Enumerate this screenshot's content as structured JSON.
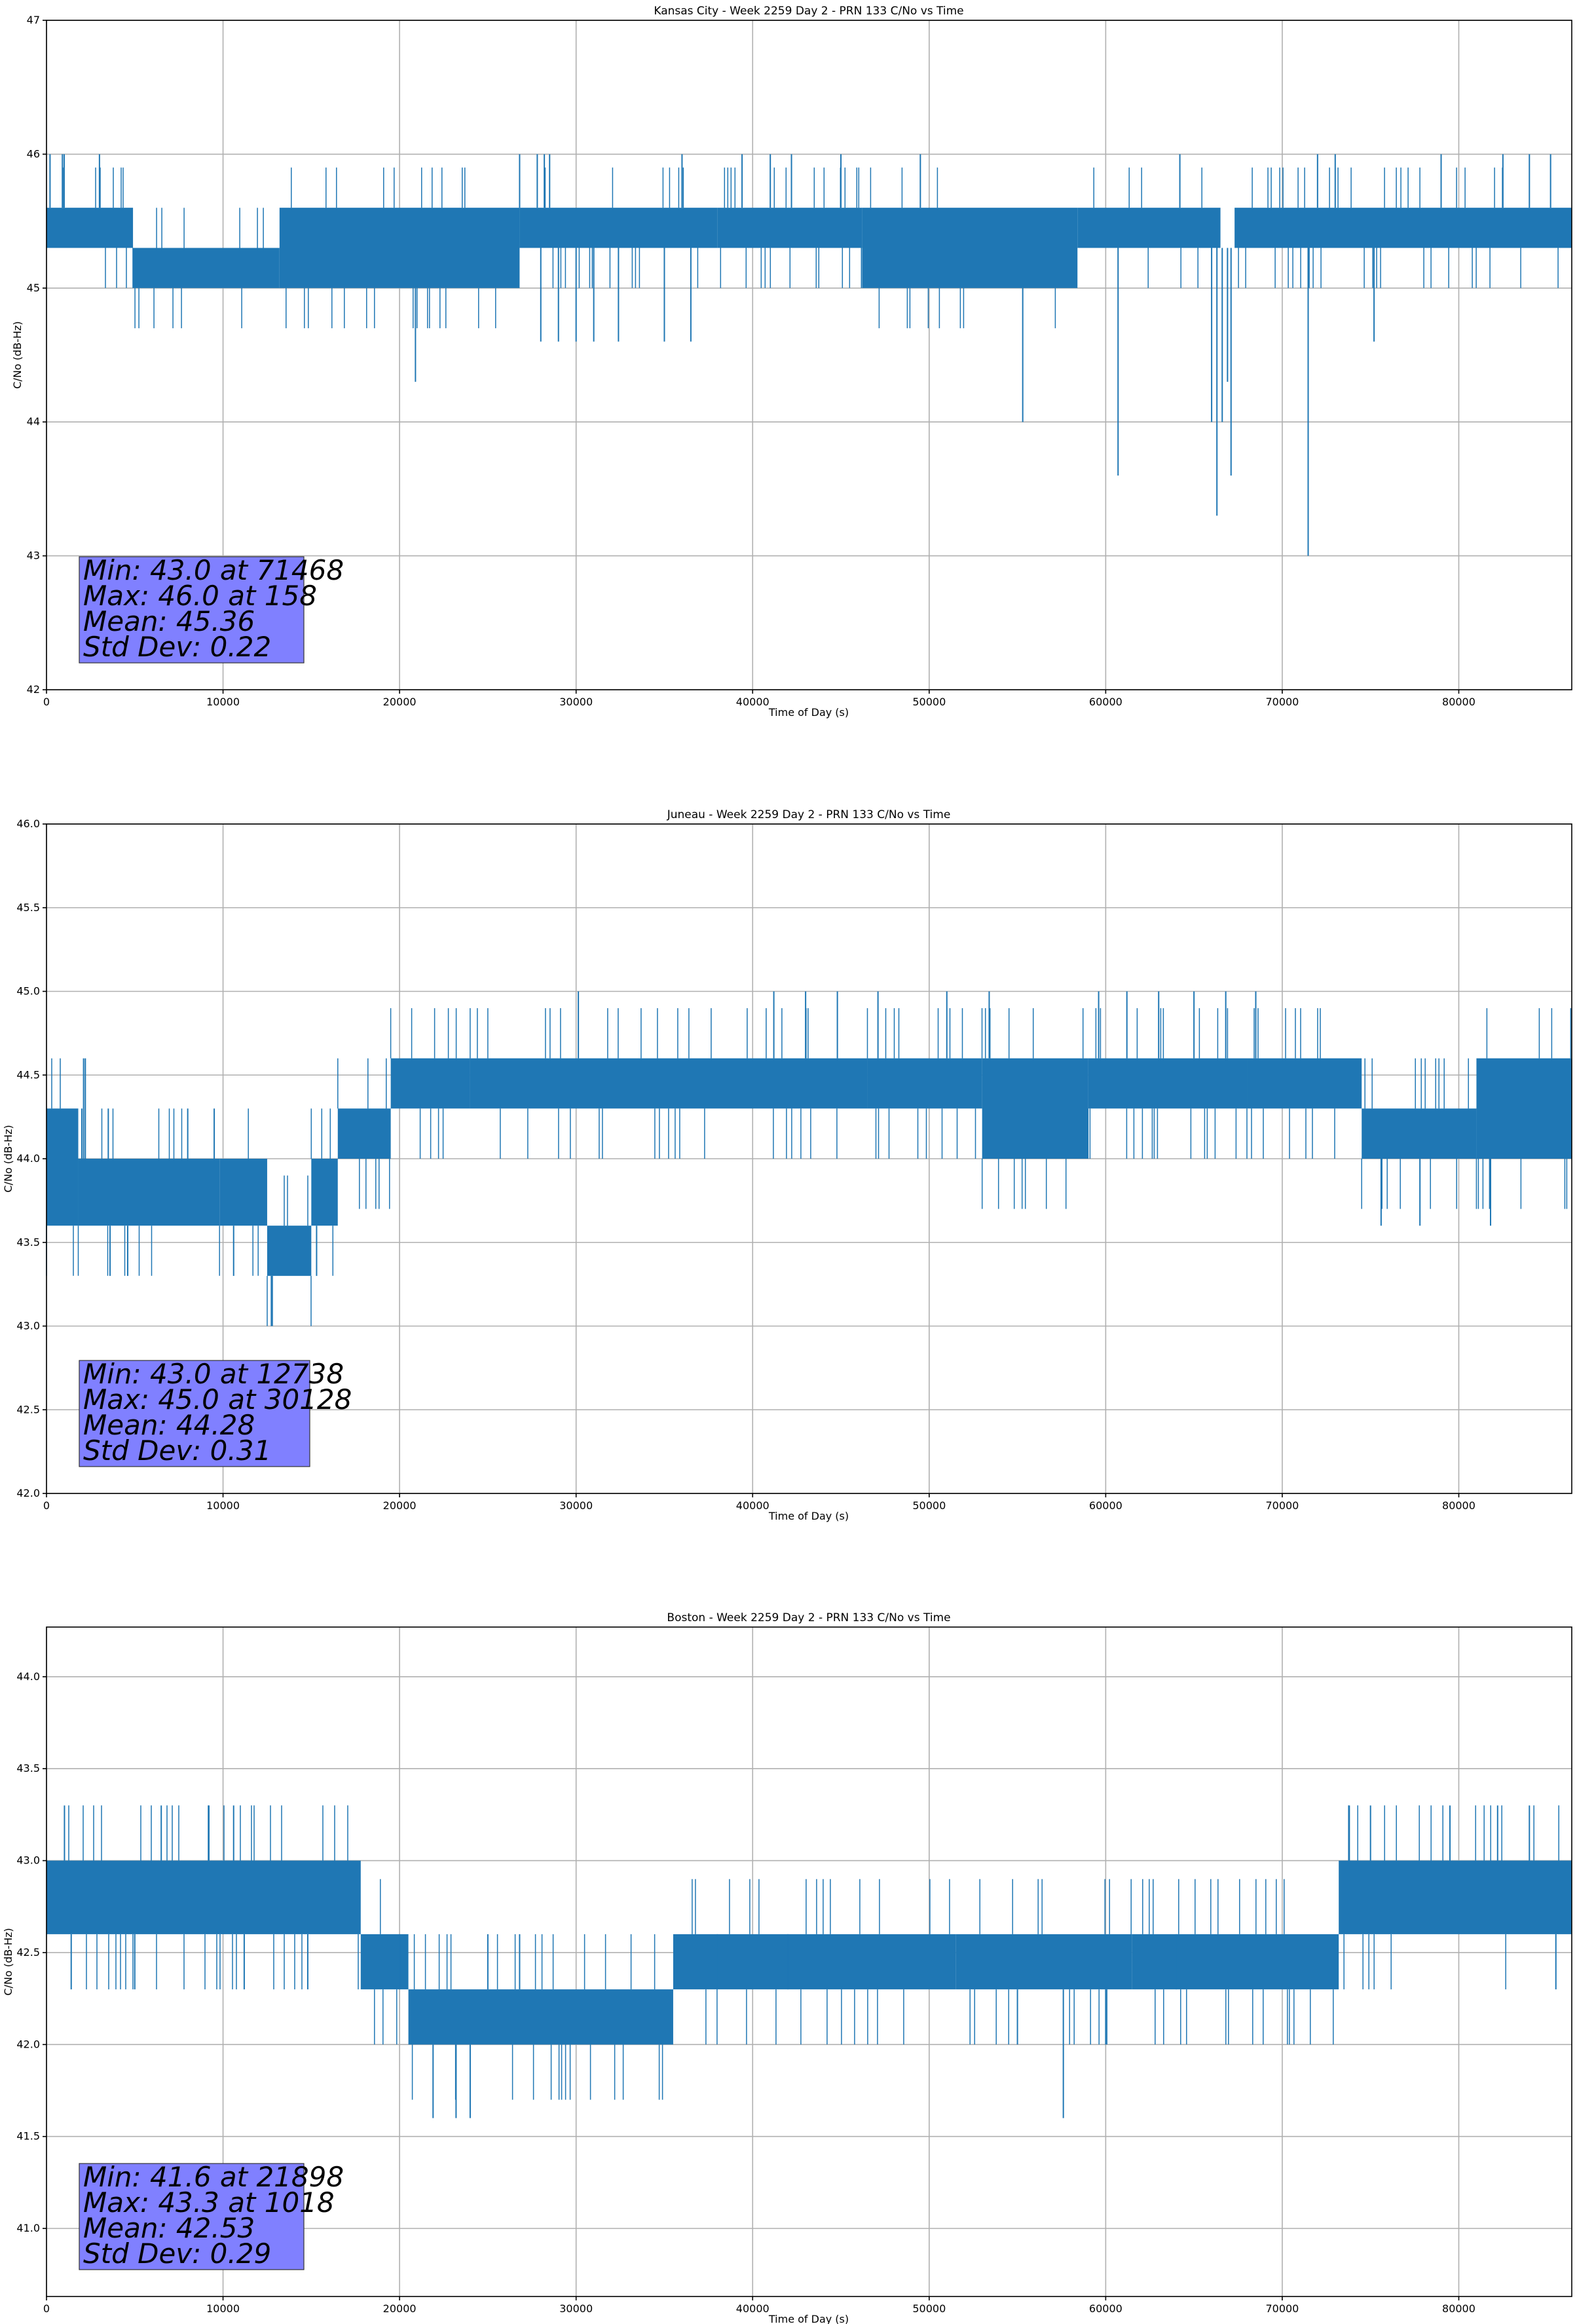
{
  "chart_data": [
    {
      "type": "line",
      "title": "Kansas City - Week 2259 Day 2 - PRN 133 C/No vs Time",
      "xlabel": "Time of Day (s)",
      "ylabel": "C/No (dB-Hz)",
      "xlim": [
        0,
        86400
      ],
      "ylim": [
        42,
        47
      ],
      "xticks": [
        0,
        10000,
        20000,
        30000,
        40000,
        50000,
        60000,
        70000,
        80000
      ],
      "yticks": [
        42,
        43,
        44,
        45,
        46,
        47
      ],
      "ytick_decimals": 0,
      "grid": true,
      "color": "#1f77b4",
      "series": [
        {
          "name": "C/No",
          "bands": [
            {
              "x": [
                0,
                4900
              ],
              "lo": 45.3,
              "hi": 45.6
            },
            {
              "x": [
                4900,
                13200
              ],
              "lo": 45.0,
              "hi": 45.3
            },
            {
              "x": [
                13200,
                26800
              ],
              "lo": 45.0,
              "hi": 45.6
            },
            {
              "x": [
                26800,
                38000
              ],
              "lo": 45.3,
              "hi": 45.6
            },
            {
              "x": [
                38000,
                46200
              ],
              "lo": 45.3,
              "hi": 45.6
            },
            {
              "x": [
                46200,
                58400
              ],
              "lo": 45.0,
              "hi": 45.6
            },
            {
              "x": [
                58400,
                66500
              ],
              "lo": 45.3,
              "hi": 45.6
            },
            {
              "x": [
                67300,
                86400
              ],
              "lo": 45.3,
              "hi": 45.6
            }
          ],
          "spikes": [
            {
              "x": 200,
              "y": 46.0
            },
            {
              "x": 900,
              "y": 46.0
            },
            {
              "x": 1000,
              "y": 46.0
            },
            {
              "x": 3000,
              "y": 46.0
            },
            {
              "x": 20900,
              "y": 44.3
            },
            {
              "x": 26800,
              "y": 46.0
            },
            {
              "x": 27800,
              "y": 46.0
            },
            {
              "x": 28200,
              "y": 46.0
            },
            {
              "x": 28500,
              "y": 46.0
            },
            {
              "x": 28000,
              "y": 44.6
            },
            {
              "x": 29000,
              "y": 44.6
            },
            {
              "x": 30000,
              "y": 44.6
            },
            {
              "x": 31000,
              "y": 44.6
            },
            {
              "x": 32400,
              "y": 44.6
            },
            {
              "x": 35000,
              "y": 44.6
            },
            {
              "x": 36500,
              "y": 44.6
            },
            {
              "x": 36000,
              "y": 46.0
            },
            {
              "x": 39400,
              "y": 46.0
            },
            {
              "x": 41000,
              "y": 46.0
            },
            {
              "x": 42200,
              "y": 46.0
            },
            {
              "x": 45000,
              "y": 46.0
            },
            {
              "x": 49500,
              "y": 46.0
            },
            {
              "x": 55300,
              "y": 44.0
            },
            {
              "x": 60700,
              "y": 43.6
            },
            {
              "x": 64200,
              "y": 46.0
            },
            {
              "x": 66000,
              "y": 44.0
            },
            {
              "x": 66300,
              "y": 43.3
            },
            {
              "x": 66600,
              "y": 44.0
            },
            {
              "x": 66900,
              "y": 44.3
            },
            {
              "x": 67100,
              "y": 43.6
            },
            {
              "x": 71468,
              "y": 43.0
            },
            {
              "x": 72000,
              "y": 46.0
            },
            {
              "x": 73000,
              "y": 46.0
            },
            {
              "x": 75200,
              "y": 44.6
            },
            {
              "x": 79000,
              "y": 46.0
            },
            {
              "x": 82500,
              "y": 46.0
            },
            {
              "x": 84000,
              "y": 46.0
            },
            {
              "x": 85200,
              "y": 46.0
            }
          ]
        }
      ],
      "stats": {
        "line1": "Min: 43.0 at 71468",
        "line2": "Max: 46.0 at 158",
        "line3": "Mean: 45.36",
        "line4": "Std Dev: 0.22"
      }
    },
    {
      "type": "line",
      "title": "Juneau - Week 2259 Day 2 - PRN 133 C/No vs Time",
      "xlabel": "Time of Day (s)",
      "ylabel": "C/No (dB-Hz)",
      "xlim": [
        0,
        86400
      ],
      "ylim": [
        42.0,
        46.0
      ],
      "xticks": [
        0,
        10000,
        20000,
        30000,
        40000,
        50000,
        60000,
        70000,
        80000
      ],
      "yticks": [
        42.0,
        42.5,
        43.0,
        43.5,
        44.0,
        44.5,
        45.0,
        45.5,
        46.0
      ],
      "ytick_decimals": 1,
      "grid": true,
      "color": "#1f77b4",
      "series": [
        {
          "name": "C/No",
          "bands": [
            {
              "x": [
                0,
                1800
              ],
              "lo": 43.6,
              "hi": 44.3
            },
            {
              "x": [
                1800,
                9800
              ],
              "lo": 43.6,
              "hi": 44.0
            },
            {
              "x": [
                9800,
                12500
              ],
              "lo": 43.6,
              "hi": 44.0
            },
            {
              "x": [
                12500,
                15000
              ],
              "lo": 43.3,
              "hi": 43.6
            },
            {
              "x": [
                15000,
                16500
              ],
              "lo": 43.6,
              "hi": 44.0
            },
            {
              "x": [
                16500,
                19500
              ],
              "lo": 44.0,
              "hi": 44.3
            },
            {
              "x": [
                19500,
                24000
              ],
              "lo": 44.3,
              "hi": 44.6
            },
            {
              "x": [
                24000,
                46500
              ],
              "lo": 44.3,
              "hi": 44.6
            },
            {
              "x": [
                46500,
                53000
              ],
              "lo": 44.3,
              "hi": 44.6
            },
            {
              "x": [
                53000,
                59000
              ],
              "lo": 44.0,
              "hi": 44.6
            },
            {
              "x": [
                59000,
                68000
              ],
              "lo": 44.3,
              "hi": 44.6
            },
            {
              "x": [
                68000,
                74500
              ],
              "lo": 44.3,
              "hi": 44.6
            },
            {
              "x": [
                74500,
                81000
              ],
              "lo": 44.0,
              "hi": 44.3
            },
            {
              "x": [
                81000,
                86400
              ],
              "lo": 44.0,
              "hi": 44.6
            }
          ],
          "spikes": [
            {
              "x": 2000,
              "y": 44.3
            },
            {
              "x": 3500,
              "y": 44.3
            },
            {
              "x": 2100,
              "y": 44.6
            },
            {
              "x": 2200,
              "y": 44.6
            },
            {
              "x": 3600,
              "y": 43.3
            },
            {
              "x": 4600,
              "y": 43.3
            },
            {
              "x": 8000,
              "y": 44.3
            },
            {
              "x": 9500,
              "y": 44.3
            },
            {
              "x": 10600,
              "y": 43.3
            },
            {
              "x": 12738,
              "y": 43.0
            },
            {
              "x": 15300,
              "y": 43.3
            },
            {
              "x": 30128,
              "y": 45.0
            },
            {
              "x": 41200,
              "y": 45.0
            },
            {
              "x": 43000,
              "y": 45.0
            },
            {
              "x": 44800,
              "y": 45.0
            },
            {
              "x": 47100,
              "y": 45.0
            },
            {
              "x": 51000,
              "y": 45.0
            },
            {
              "x": 53400,
              "y": 45.0
            },
            {
              "x": 59600,
              "y": 45.0
            },
            {
              "x": 61200,
              "y": 45.0
            },
            {
              "x": 63000,
              "y": 45.0
            },
            {
              "x": 65000,
              "y": 45.0
            },
            {
              "x": 66800,
              "y": 45.0
            },
            {
              "x": 68500,
              "y": 45.0
            },
            {
              "x": 75600,
              "y": 43.6
            },
            {
              "x": 77800,
              "y": 43.6
            },
            {
              "x": 81800,
              "y": 43.6
            }
          ]
        }
      ],
      "stats": {
        "line1": "Min: 43.0 at 12738",
        "line2": "Max: 45.0 at 30128",
        "line3": "Mean: 44.28",
        "line4": "Std Dev: 0.31"
      }
    },
    {
      "type": "line",
      "title": "Boston - Week 2259 Day 2 - PRN 133 C/No vs Time",
      "xlabel": "Time of Day (s)",
      "ylabel": "C/No (dB-Hz)",
      "xlim": [
        0,
        86400
      ],
      "ylim": [
        40.63,
        44.27
      ],
      "xticks": [
        0,
        10000,
        20000,
        30000,
        40000,
        50000,
        60000,
        70000,
        80000
      ],
      "yticks": [
        41.0,
        41.5,
        42.0,
        42.5,
        43.0,
        43.5,
        44.0
      ],
      "ytick_decimals": 1,
      "grid": true,
      "color": "#1f77b4",
      "series": [
        {
          "name": "C/No",
          "bands": [
            {
              "x": [
                0,
                17800
              ],
              "lo": 42.6,
              "hi": 43.0
            },
            {
              "x": [
                17800,
                20500
              ],
              "lo": 42.3,
              "hi": 42.6
            },
            {
              "x": [
                20500,
                35500
              ],
              "lo": 42.0,
              "hi": 42.3
            },
            {
              "x": [
                35500,
                51500
              ],
              "lo": 42.3,
              "hi": 42.6
            },
            {
              "x": [
                51500,
                61500
              ],
              "lo": 42.3,
              "hi": 42.6
            },
            {
              "x": [
                61500,
                73200
              ],
              "lo": 42.3,
              "hi": 42.6
            },
            {
              "x": [
                73200,
                86400
              ],
              "lo": 42.6,
              "hi": 43.0
            }
          ],
          "spikes": [
            {
              "x": 1018,
              "y": 43.3
            },
            {
              "x": 6500,
              "y": 43.3
            },
            {
              "x": 9200,
              "y": 43.3
            },
            {
              "x": 10600,
              "y": 43.3
            },
            {
              "x": 1400,
              "y": 42.3
            },
            {
              "x": 5000,
              "y": 42.3
            },
            {
              "x": 11200,
              "y": 42.3
            },
            {
              "x": 14800,
              "y": 42.3
            },
            {
              "x": 20000,
              "y": 42.6
            },
            {
              "x": 21898,
              "y": 41.6
            },
            {
              "x": 23200,
              "y": 41.6
            },
            {
              "x": 24000,
              "y": 41.6
            },
            {
              "x": 25000,
              "y": 42.6
            },
            {
              "x": 26800,
              "y": 42.6
            },
            {
              "x": 38000,
              "y": 42.6
            },
            {
              "x": 42000,
              "y": 42.6
            },
            {
              "x": 55000,
              "y": 42.0
            },
            {
              "x": 57600,
              "y": 41.6
            },
            {
              "x": 60000,
              "y": 42.0
            },
            {
              "x": 64000,
              "y": 42.6
            },
            {
              "x": 73800,
              "y": 43.3
            },
            {
              "x": 75000,
              "y": 43.3
            },
            {
              "x": 79500,
              "y": 43.3
            },
            {
              "x": 82200,
              "y": 43.3
            },
            {
              "x": 84000,
              "y": 43.3
            },
            {
              "x": 85500,
              "y": 42.3
            }
          ]
        }
      ],
      "stats": {
        "line1": "Min: 41.6 at 21898",
        "line2": "Max: 43.3 at 1018",
        "line3": "Mean: 42.53",
        "line4": "Std Dev: 0.29"
      }
    }
  ]
}
